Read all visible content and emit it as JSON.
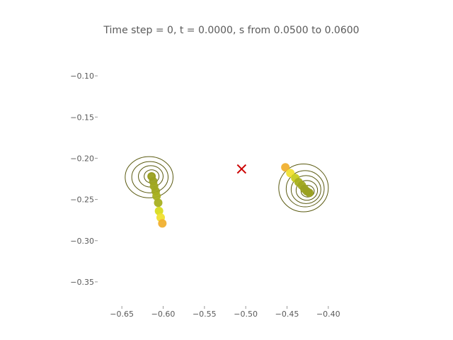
{
  "title": "Time step = 0, t = 0.0000, s from 0.0500 to 0.0600",
  "chart_data": {
    "type": "scatter",
    "title": "Time step = 0, t = 0.0000, s from 0.0500 to 0.0600",
    "xlabel": "",
    "ylabel": "",
    "xlim": [
      -0.675,
      -0.375
    ],
    "ylim": [
      -0.375,
      -0.075
    ],
    "x_ticks": [
      -0.65,
      -0.6,
      -0.55,
      -0.5,
      -0.45,
      -0.4
    ],
    "x_tick_labels": [
      "−0.65",
      "−0.60",
      "−0.55",
      "−0.50",
      "−0.45",
      "−0.40"
    ],
    "y_ticks": [
      -0.1,
      -0.15,
      -0.2,
      -0.25,
      -0.3,
      -0.35
    ],
    "y_tick_labels": [
      "−0.10",
      "−0.15",
      "−0.20",
      "−0.25",
      "−0.30",
      "−0.35"
    ],
    "grid": false,
    "marker": {
      "x": -0.505,
      "y": -0.213,
      "symbol": "x",
      "color": "#cc0000"
    },
    "series": [
      {
        "x": [
          -0.614,
          -0.612,
          -0.611,
          -0.609,
          -0.608,
          -0.606,
          -0.605,
          -0.603,
          -0.601
        ],
        "y": [
          -0.222,
          -0.228,
          -0.234,
          -0.24,
          -0.246,
          -0.254,
          -0.264,
          -0.272,
          -0.279
        ],
        "colors": [
          "#9aa020",
          "#9aa020",
          "#a0a820",
          "#a0a820",
          "#a8b020",
          "#a8b020",
          "#d8dc20",
          "#f0e030",
          "#f0b030"
        ]
      },
      {
        "x": [
          -0.452,
          -0.446,
          -0.44,
          -0.436,
          -0.432,
          -0.429,
          -0.426,
          -0.423
        ],
        "y": [
          -0.211,
          -0.218,
          -0.224,
          -0.229,
          -0.233,
          -0.237,
          -0.24,
          -0.242
        ],
        "colors": [
          "#f0b030",
          "#f0e030",
          "#c8cc20",
          "#a8b020",
          "#a0a820",
          "#9aa020",
          "#9aa020",
          "#9aa020"
        ]
      }
    ],
    "contours": [
      {
        "kind": "circles",
        "points": [
          [
            -0.614,
            -0.222,
            0.004,
            0.004
          ],
          [
            -0.614,
            -0.222,
            0.009,
            0.008
          ],
          [
            -0.615,
            -0.222,
            0.015,
            0.013
          ],
          [
            -0.616,
            -0.223,
            0.022,
            0.019
          ],
          [
            -0.617,
            -0.223,
            0.029,
            0.025
          ]
        ]
      },
      {
        "kind": "circles",
        "points": [
          [
            -0.424,
            -0.241,
            0.004,
            0.004
          ],
          [
            -0.425,
            -0.24,
            0.008,
            0.007
          ],
          [
            -0.426,
            -0.239,
            0.013,
            0.012
          ],
          [
            -0.427,
            -0.238,
            0.018,
            0.017
          ],
          [
            -0.428,
            -0.237,
            0.023,
            0.022
          ],
          [
            -0.43,
            -0.236,
            0.03,
            0.029
          ]
        ]
      }
    ]
  }
}
